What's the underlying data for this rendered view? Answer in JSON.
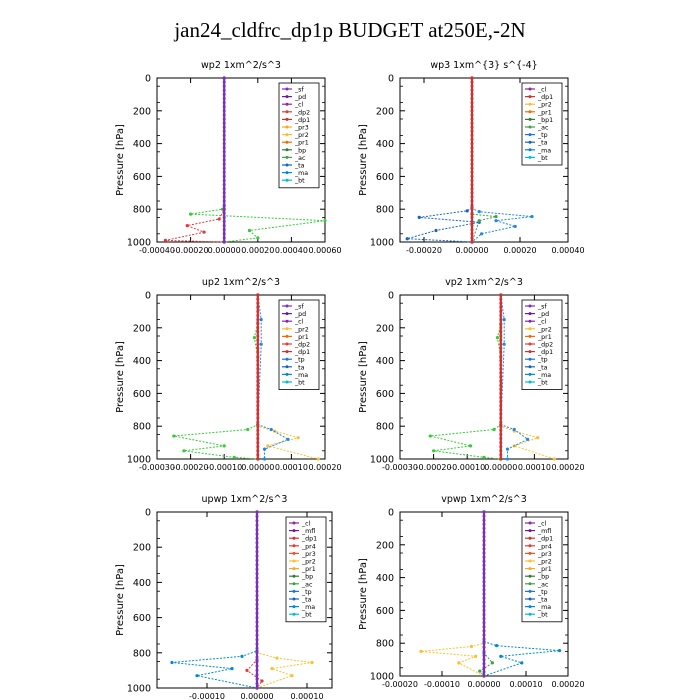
{
  "title": "jan24_cldfrc_dp1p  BUDGET at250E,-2N",
  "chart_data": [
    {
      "type": "line",
      "title": "wp2   1xm^2/s^3",
      "ylabel": "Pressure  [hPa]",
      "xlim": [
        -0.0004,
        0.0006
      ],
      "ylim": [
        1000,
        0
      ],
      "xticks": [
        "-0.00040",
        "-0.00020",
        "0.00000",
        "0.00020",
        "0.00040",
        "0.00060"
      ],
      "yticks": [
        "0",
        "200",
        "400",
        "600",
        "800",
        "1000"
      ],
      "legend_position": "top-right",
      "series": [
        {
          "name": "_sf",
          "color": "#7b2fbe"
        },
        {
          "name": "_pd",
          "color": "#6a1b9a"
        },
        {
          "name": "_cl",
          "color": "#8e24aa"
        },
        {
          "name": "_dp2",
          "color": "#e53935"
        },
        {
          "name": "_dp1",
          "color": "#d32f2f"
        },
        {
          "name": "_pr3",
          "color": "#f9a825"
        },
        {
          "name": "_pr2",
          "color": "#fbc02d"
        },
        {
          "name": "_pr1",
          "color": "#ef6c00"
        },
        {
          "name": "_bp",
          "color": "#2e7d32"
        },
        {
          "name": "_ac",
          "color": "#43a047"
        },
        {
          "name": "_ta",
          "color": "#1565c0"
        },
        {
          "name": "_ma",
          "color": "#0288d1"
        },
        {
          "name": "_bt",
          "color": "#00bcd4"
        }
      ],
      "profiles": [
        {
          "color": "#33cc33",
          "points": [
            [
              0,
              0
            ],
            [
              0,
              780
            ],
            [
              -1e-05,
              800
            ],
            [
              -0.0002,
              830
            ],
            [
              0.0006,
              870
            ],
            [
              0.00015,
              930
            ],
            [
              0.0002,
              975
            ],
            [
              0,
              1000
            ]
          ]
        },
        {
          "color": "#e53935",
          "points": [
            [
              0,
              0
            ],
            [
              0,
              800
            ],
            [
              -3e-05,
              860
            ],
            [
              -0.00022,
              900
            ],
            [
              -0.00012,
              940
            ],
            [
              -0.00035,
              990
            ],
            [
              0,
              1000
            ]
          ]
        },
        {
          "color": "#7b2fbe",
          "points": [
            [
              0,
              0
            ],
            [
              0,
              1000
            ]
          ]
        }
      ]
    },
    {
      "type": "line",
      "title": "wp3   1xm^{3} s^{-4}",
      "ylabel": "Pressure  [hPa]",
      "xlim": [
        -0.0003,
        0.0004
      ],
      "ylim": [
        1000,
        0
      ],
      "xticks": [
        "-0.00020",
        "0.00000",
        "0.00020",
        "0.00040"
      ],
      "yticks": [
        "0",
        "200",
        "400",
        "600",
        "800",
        "1000"
      ],
      "legend_position": "top-right",
      "series": [
        {
          "name": "_cl",
          "color": "#8e24aa"
        },
        {
          "name": "_dp1",
          "color": "#d32f2f"
        },
        {
          "name": "_pr2",
          "color": "#fbc02d"
        },
        {
          "name": "_pr1",
          "color": "#ef6c00"
        },
        {
          "name": "_bp1",
          "color": "#2e7d32"
        },
        {
          "name": "_ac",
          "color": "#43a047"
        },
        {
          "name": "_tp",
          "color": "#1976d2"
        },
        {
          "name": "_ta",
          "color": "#1565c0"
        },
        {
          "name": "_ma",
          "color": "#0288d1"
        },
        {
          "name": "_bt",
          "color": "#00bcd4"
        }
      ],
      "profiles": [
        {
          "color": "#1565c0",
          "points": [
            [
              0,
              0
            ],
            [
              0,
              790
            ],
            [
              -2e-05,
              810
            ],
            [
              -0.00022,
              850
            ],
            [
              3e-05,
              880
            ],
            [
              -0.00015,
              930
            ],
            [
              -0.00027,
              980
            ],
            [
              0,
              1000
            ]
          ]
        },
        {
          "color": "#1e88e5",
          "points": [
            [
              0,
              0
            ],
            [
              0,
              795
            ],
            [
              3e-05,
              815
            ],
            [
              0.00025,
              845
            ],
            [
              0.0001,
              870
            ],
            [
              0.00018,
              905
            ],
            [
              4e-05,
              950
            ],
            [
              0,
              1000
            ]
          ]
        },
        {
          "color": "#43a047",
          "points": [
            [
              0,
              0
            ],
            [
              0,
              830
            ],
            [
              0.0001,
              845
            ],
            [
              3e-05,
              870
            ],
            [
              0,
              1000
            ]
          ]
        },
        {
          "color": "#d32f2f",
          "points": [
            [
              0,
              0
            ],
            [
              0,
              1000
            ]
          ]
        }
      ]
    },
    {
      "type": "line",
      "title": "up2   1xm^2/s^3",
      "ylabel": "Pressure  [hPa]",
      "xlim": [
        -0.0003,
        0.0002
      ],
      "ylim": [
        1000,
        0
      ],
      "xticks": [
        "-0.00030",
        "-0.00020",
        "-0.00010",
        "0.00000",
        "0.00010",
        "0.00020"
      ],
      "yticks": [
        "0",
        "200",
        "400",
        "600",
        "800",
        "1000"
      ],
      "legend_position": "top-right",
      "series": [
        {
          "name": "_sf",
          "color": "#7b2fbe"
        },
        {
          "name": "_pd",
          "color": "#6a1b9a"
        },
        {
          "name": "_cl",
          "color": "#8e24aa"
        },
        {
          "name": "_pr2",
          "color": "#fbc02d"
        },
        {
          "name": "_pr1",
          "color": "#ef6c00"
        },
        {
          "name": "_dp2",
          "color": "#e53935"
        },
        {
          "name": "_dp1",
          "color": "#d32f2f"
        },
        {
          "name": "_tp",
          "color": "#1976d2"
        },
        {
          "name": "_ta",
          "color": "#1565c0"
        },
        {
          "name": "_ma",
          "color": "#0288d1"
        },
        {
          "name": "_bt",
          "color": "#00bcd4"
        }
      ],
      "profiles": [
        {
          "color": "#33cc33",
          "points": [
            [
              0,
              0
            ],
            [
              0,
              170
            ],
            [
              -1e-05,
              260
            ],
            [
              0,
              380
            ],
            [
              0,
              790
            ],
            [
              -3e-05,
              820
            ],
            [
              -0.00025,
              860
            ],
            [
              -0.0001,
              920
            ],
            [
              -0.00022,
              950
            ],
            [
              -7e-05,
              990
            ],
            [
              0,
              1000
            ]
          ]
        },
        {
          "color": "#fbc02d",
          "points": [
            [
              0,
              0
            ],
            [
              0,
              800
            ],
            [
              5e-05,
              830
            ],
            [
              0.00012,
              870
            ],
            [
              3e-05,
              920
            ],
            [
              0.00018,
              1000
            ]
          ]
        },
        {
          "color": "#1e88e5",
          "points": [
            [
              0,
              0
            ],
            [
              1e-05,
              150
            ],
            [
              1e-05,
              300
            ],
            [
              0,
              790
            ],
            [
              4e-05,
              820
            ],
            [
              9e-05,
              880
            ],
            [
              2e-05,
              940
            ],
            [
              2e-05,
              1000
            ]
          ]
        },
        {
          "color": "#d32f2f",
          "points": [
            [
              0,
              0
            ],
            [
              0,
              1000
            ]
          ]
        }
      ]
    },
    {
      "type": "line",
      "title": "vp2   1xm^2/s^3",
      "ylabel": "Pressure  [hPa]",
      "xlim": [
        -0.0003,
        0.0002
      ],
      "ylim": [
        1000,
        0
      ],
      "xticks": [
        "-0.00030",
        "-0.00020",
        "-0.00010",
        "0.00000",
        "0.00010",
        "0.00020"
      ],
      "yticks": [
        "0",
        "200",
        "400",
        "600",
        "800",
        "1000"
      ],
      "legend_position": "top-right",
      "series": [
        {
          "name": "_sf",
          "color": "#7b2fbe"
        },
        {
          "name": "_pd",
          "color": "#6a1b9a"
        },
        {
          "name": "_cl",
          "color": "#8e24aa"
        },
        {
          "name": "_pr2",
          "color": "#fbc02d"
        },
        {
          "name": "_pr1",
          "color": "#ef6c00"
        },
        {
          "name": "_dp2",
          "color": "#e53935"
        },
        {
          "name": "_dp1",
          "color": "#d32f2f"
        },
        {
          "name": "_tp",
          "color": "#1976d2"
        },
        {
          "name": "_ta",
          "color": "#1565c0"
        },
        {
          "name": "_ma",
          "color": "#0288d1"
        },
        {
          "name": "_bt",
          "color": "#00bcd4"
        }
      ],
      "profiles": [
        {
          "color": "#33cc33",
          "points": [
            [
              0,
              0
            ],
            [
              0,
              180
            ],
            [
              -1e-05,
              260
            ],
            [
              0,
              380
            ],
            [
              0,
              790
            ],
            [
              -2e-05,
              820
            ],
            [
              -0.00021,
              860
            ],
            [
              -9e-05,
              920
            ],
            [
              -0.0002,
              950
            ],
            [
              -5e-05,
              990
            ],
            [
              0,
              1000
            ]
          ]
        },
        {
          "color": "#fbc02d",
          "points": [
            [
              0,
              0
            ],
            [
              0,
              800
            ],
            [
              4e-05,
              830
            ],
            [
              0.00011,
              870
            ],
            [
              4e-05,
              920
            ],
            [
              0.00016,
              1000
            ]
          ]
        },
        {
          "color": "#1e88e5",
          "points": [
            [
              0,
              0
            ],
            [
              1e-05,
              150
            ],
            [
              1e-05,
              300
            ],
            [
              0,
              790
            ],
            [
              4e-05,
              820
            ],
            [
              8e-05,
              880
            ],
            [
              2e-05,
              940
            ],
            [
              2e-05,
              1000
            ]
          ]
        },
        {
          "color": "#d32f2f",
          "points": [
            [
              0,
              0
            ],
            [
              0,
              1000
            ]
          ]
        }
      ]
    },
    {
      "type": "line",
      "title": "upwp   1xm^2/s^3",
      "ylabel": "Pressure  [hPa]",
      "xlim": [
        -0.0002,
        0.00015
      ],
      "ylim": [
        1000,
        0
      ],
      "xticks": [
        "-0.00010",
        "0.00000",
        "0.00010"
      ],
      "yticks": [
        "0",
        "200",
        "400",
        "600",
        "800",
        "1000"
      ],
      "legend_position": "top-right",
      "series": [
        {
          "name": "_cl",
          "color": "#8e24aa"
        },
        {
          "name": "_mfl",
          "color": "#6a1b9a"
        },
        {
          "name": "_dp1",
          "color": "#d32f2f"
        },
        {
          "name": "_pr4",
          "color": "#e53935"
        },
        {
          "name": "_pr3",
          "color": "#f4511e"
        },
        {
          "name": "_pr2",
          "color": "#fbc02d"
        },
        {
          "name": "_pr1",
          "color": "#f9a825"
        },
        {
          "name": "_bp",
          "color": "#2e7d32"
        },
        {
          "name": "_ac",
          "color": "#43a047"
        },
        {
          "name": "_tp",
          "color": "#1976d2"
        },
        {
          "name": "_ta",
          "color": "#1565c0"
        },
        {
          "name": "_ma",
          "color": "#0288d1"
        },
        {
          "name": "_bt",
          "color": "#00bcd4"
        }
      ],
      "profiles": [
        {
          "color": "#0288d1",
          "points": [
            [
              0,
              0
            ],
            [
              0,
              790
            ],
            [
              -3e-05,
              820
            ],
            [
              -0.00017,
              855
            ],
            [
              -5e-05,
              890
            ],
            [
              -0.00012,
              930
            ],
            [
              0,
              1000
            ]
          ]
        },
        {
          "color": "#fbc02d",
          "points": [
            [
              0,
              0
            ],
            [
              0,
              800
            ],
            [
              4e-05,
              830
            ],
            [
              0.00011,
              855
            ],
            [
              3e-05,
              890
            ],
            [
              7e-05,
              930
            ],
            [
              0,
              1000
            ]
          ]
        },
        {
          "color": "#e53935",
          "points": [
            [
              0,
              0
            ],
            [
              0,
              840
            ],
            [
              -2e-05,
              900
            ],
            [
              1e-05,
              960
            ],
            [
              0,
              1000
            ]
          ]
        },
        {
          "color": "#7b2fbe",
          "points": [
            [
              0,
              0
            ],
            [
              0,
              1000
            ]
          ]
        }
      ]
    },
    {
      "type": "line",
      "title": "vpwp   1xm^2/s^3",
      "ylabel": "Pressure  [hPa]",
      "xlim": [
        -0.0002,
        0.0002
      ],
      "ylim": [
        1000,
        0
      ],
      "xticks": [
        "-0.00020",
        "-0.00010",
        "0.00000",
        "0.00010",
        "0.00020"
      ],
      "yticks": [
        "0",
        "200",
        "400",
        "600",
        "800",
        "1000"
      ],
      "legend_position": "top-right",
      "series": [
        {
          "name": "_cl",
          "color": "#8e24aa"
        },
        {
          "name": "_mfl",
          "color": "#6a1b9a"
        },
        {
          "name": "_dp1",
          "color": "#d32f2f"
        },
        {
          "name": "_pr4",
          "color": "#e53935"
        },
        {
          "name": "_pr3",
          "color": "#f4511e"
        },
        {
          "name": "_pr2",
          "color": "#fbc02d"
        },
        {
          "name": "_pr1",
          "color": "#f9a825"
        },
        {
          "name": "_bp",
          "color": "#2e7d32"
        },
        {
          "name": "_ac",
          "color": "#43a047"
        },
        {
          "name": "_tp",
          "color": "#1976d2"
        },
        {
          "name": "_ta",
          "color": "#1565c0"
        },
        {
          "name": "_ma",
          "color": "#0288d1"
        },
        {
          "name": "_bt",
          "color": "#00bcd4"
        }
      ],
      "profiles": [
        {
          "color": "#0288d1",
          "points": [
            [
              0,
              0
            ],
            [
              0,
              790
            ],
            [
              3e-05,
              815
            ],
            [
              0.00018,
              845
            ],
            [
              4e-05,
              880
            ],
            [
              9e-05,
              920
            ],
            [
              0,
              1000
            ]
          ]
        },
        {
          "color": "#fbc02d",
          "points": [
            [
              0,
              0
            ],
            [
              0,
              800
            ],
            [
              -3e-05,
              820
            ],
            [
              -0.00015,
              850
            ],
            [
              -2e-05,
              880
            ],
            [
              -6e-05,
              920
            ],
            [
              0,
              1000
            ]
          ]
        },
        {
          "color": "#43a047",
          "points": [
            [
              0,
              0
            ],
            [
              0,
              860
            ],
            [
              2e-05,
              920
            ],
            [
              -1e-05,
              970
            ],
            [
              0,
              1000
            ]
          ]
        },
        {
          "color": "#7b2fbe",
          "points": [
            [
              0,
              0
            ],
            [
              0,
              1000
            ]
          ]
        }
      ]
    }
  ]
}
